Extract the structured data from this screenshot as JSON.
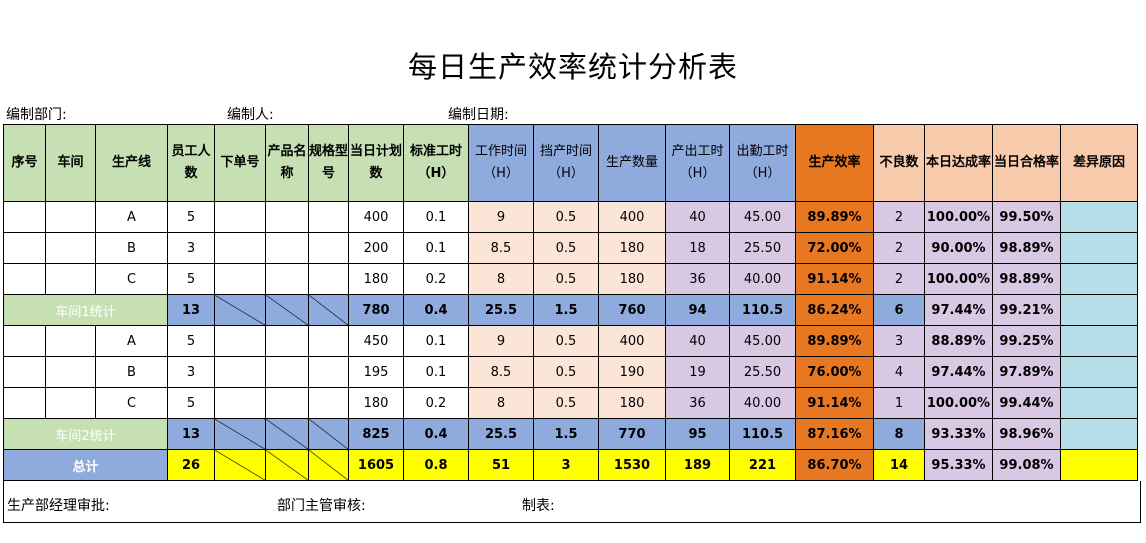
{
  "title": "每日生产效率统计分析表",
  "meta": {
    "dept_label": "编制部门:",
    "author_label": "编制人:",
    "date_label": "编制日期:"
  },
  "headers": {
    "seq": "序号",
    "workshop": "车间",
    "line": "生产线",
    "staff": "员工人数",
    "order_no": "下单号",
    "product_name": "产品名称",
    "spec": "规格型号",
    "plan_qty": "当日计划数",
    "std_hours": "标准工时（H）",
    "work_time": "工作时间（H）",
    "stop_time": "挡产时间（H）",
    "output_qty": "生产数量",
    "output_hours": "产出工时（H）",
    "attend_hours": "出勤工时（H）",
    "efficiency": "生产效率",
    "defects": "不良数",
    "achieve_rate": "本日达成率",
    "pass_rate": "当日合格率",
    "variance": "差异原因"
  },
  "rows": [
    {
      "line": "A",
      "staff": "5",
      "plan": "400",
      "std": "0.1",
      "work": "9",
      "stop": "0.5",
      "qty": "400",
      "out_h": "40",
      "att_h": "45.00",
      "eff": "89.89%",
      "def": "2",
      "ach": "100.00%",
      "pass": "99.50%"
    },
    {
      "line": "B",
      "staff": "3",
      "plan": "200",
      "std": "0.1",
      "work": "8.5",
      "stop": "0.5",
      "qty": "180",
      "out_h": "18",
      "att_h": "25.50",
      "eff": "72.00%",
      "def": "2",
      "ach": "90.00%",
      "pass": "98.89%"
    },
    {
      "line": "C",
      "staff": "5",
      "plan": "180",
      "std": "0.2",
      "work": "8",
      "stop": "0.5",
      "qty": "180",
      "out_h": "36",
      "att_h": "40.00",
      "eff": "91.14%",
      "def": "2",
      "ach": "100.00%",
      "pass": "98.89%"
    },
    {
      "label": "车间1统计",
      "staff": "13",
      "plan": "780",
      "std": "0.4",
      "work": "25.5",
      "stop": "1.5",
      "qty": "760",
      "out_h": "94",
      "att_h": "110.5",
      "eff": "86.24%",
      "def": "6",
      "ach": "97.44%",
      "pass": "99.21%"
    },
    {
      "line": "A",
      "staff": "5",
      "plan": "450",
      "std": "0.1",
      "work": "9",
      "stop": "0.5",
      "qty": "400",
      "out_h": "40",
      "att_h": "45.00",
      "eff": "89.89%",
      "def": "3",
      "ach": "88.89%",
      "pass": "99.25%"
    },
    {
      "line": "B",
      "staff": "3",
      "plan": "195",
      "std": "0.1",
      "work": "8.5",
      "stop": "0.5",
      "qty": "190",
      "out_h": "19",
      "att_h": "25.50",
      "eff": "76.00%",
      "def": "4",
      "ach": "97.44%",
      "pass": "97.89%"
    },
    {
      "line": "C",
      "staff": "5",
      "plan": "180",
      "std": "0.2",
      "work": "8",
      "stop": "0.5",
      "qty": "180",
      "out_h": "36",
      "att_h": "40.00",
      "eff": "91.14%",
      "def": "1",
      "ach": "100.00%",
      "pass": "99.44%"
    },
    {
      "label": "车间2统计",
      "staff": "13",
      "plan": "825",
      "std": "0.4",
      "work": "25.5",
      "stop": "1.5",
      "qty": "770",
      "out_h": "95",
      "att_h": "110.5",
      "eff": "87.16%",
      "def": "8",
      "ach": "93.33%",
      "pass": "98.96%"
    },
    {
      "label": "总计",
      "staff": "26",
      "plan": "1605",
      "std": "0.8",
      "work": "51",
      "stop": "3",
      "qty": "1530",
      "out_h": "189",
      "att_h": "221",
      "eff": "86.70%",
      "def": "14",
      "ach": "95.33%",
      "pass": "99.08%"
    }
  ],
  "footer": {
    "manager": "生产部经理审批:",
    "supervisor": "部门主管审核:",
    "preparer": "制表:"
  }
}
